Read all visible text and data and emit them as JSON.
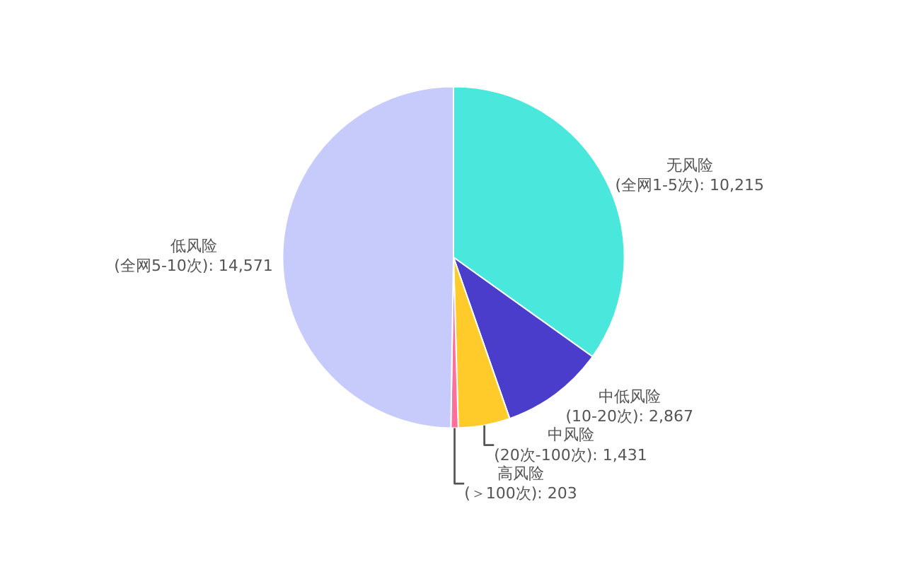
{
  "chart_data": {
    "type": "pie",
    "categories": [
      "无风险\n(全网1-5次)",
      "中低风险\n(10-20次)",
      "中风险\n(20次-100次)",
      "高风险\n(＞100次)",
      "低风险\n(全网5-10次)"
    ],
    "values": [
      10215,
      2867,
      1431,
      203,
      14571
    ],
    "colors": [
      "#4ae8dc",
      "#4a3dcc",
      "#ffcb2b",
      "#ff6f9e",
      "#c6cbfb"
    ],
    "value_labels": [
      "10,215",
      "2,867",
      "1,431",
      "203",
      "14,571"
    ],
    "legend": false
  }
}
